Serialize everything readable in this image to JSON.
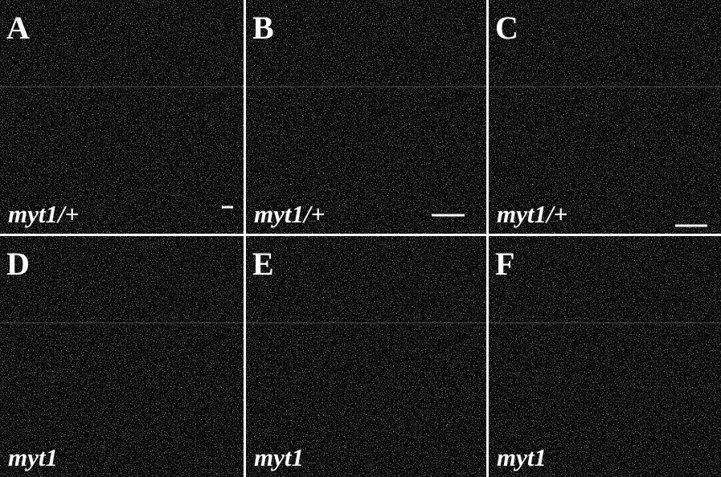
{
  "panels": [
    {
      "letter": "A",
      "genotype": "myt1/+"
    },
    {
      "letter": "B",
      "genotype": "myt1/+"
    },
    {
      "letter": "C",
      "genotype": "myt1/+"
    },
    {
      "letter": "D",
      "genotype": "myt1"
    },
    {
      "letter": "E",
      "genotype": "myt1"
    },
    {
      "letter": "F",
      "genotype": "myt1"
    }
  ]
}
